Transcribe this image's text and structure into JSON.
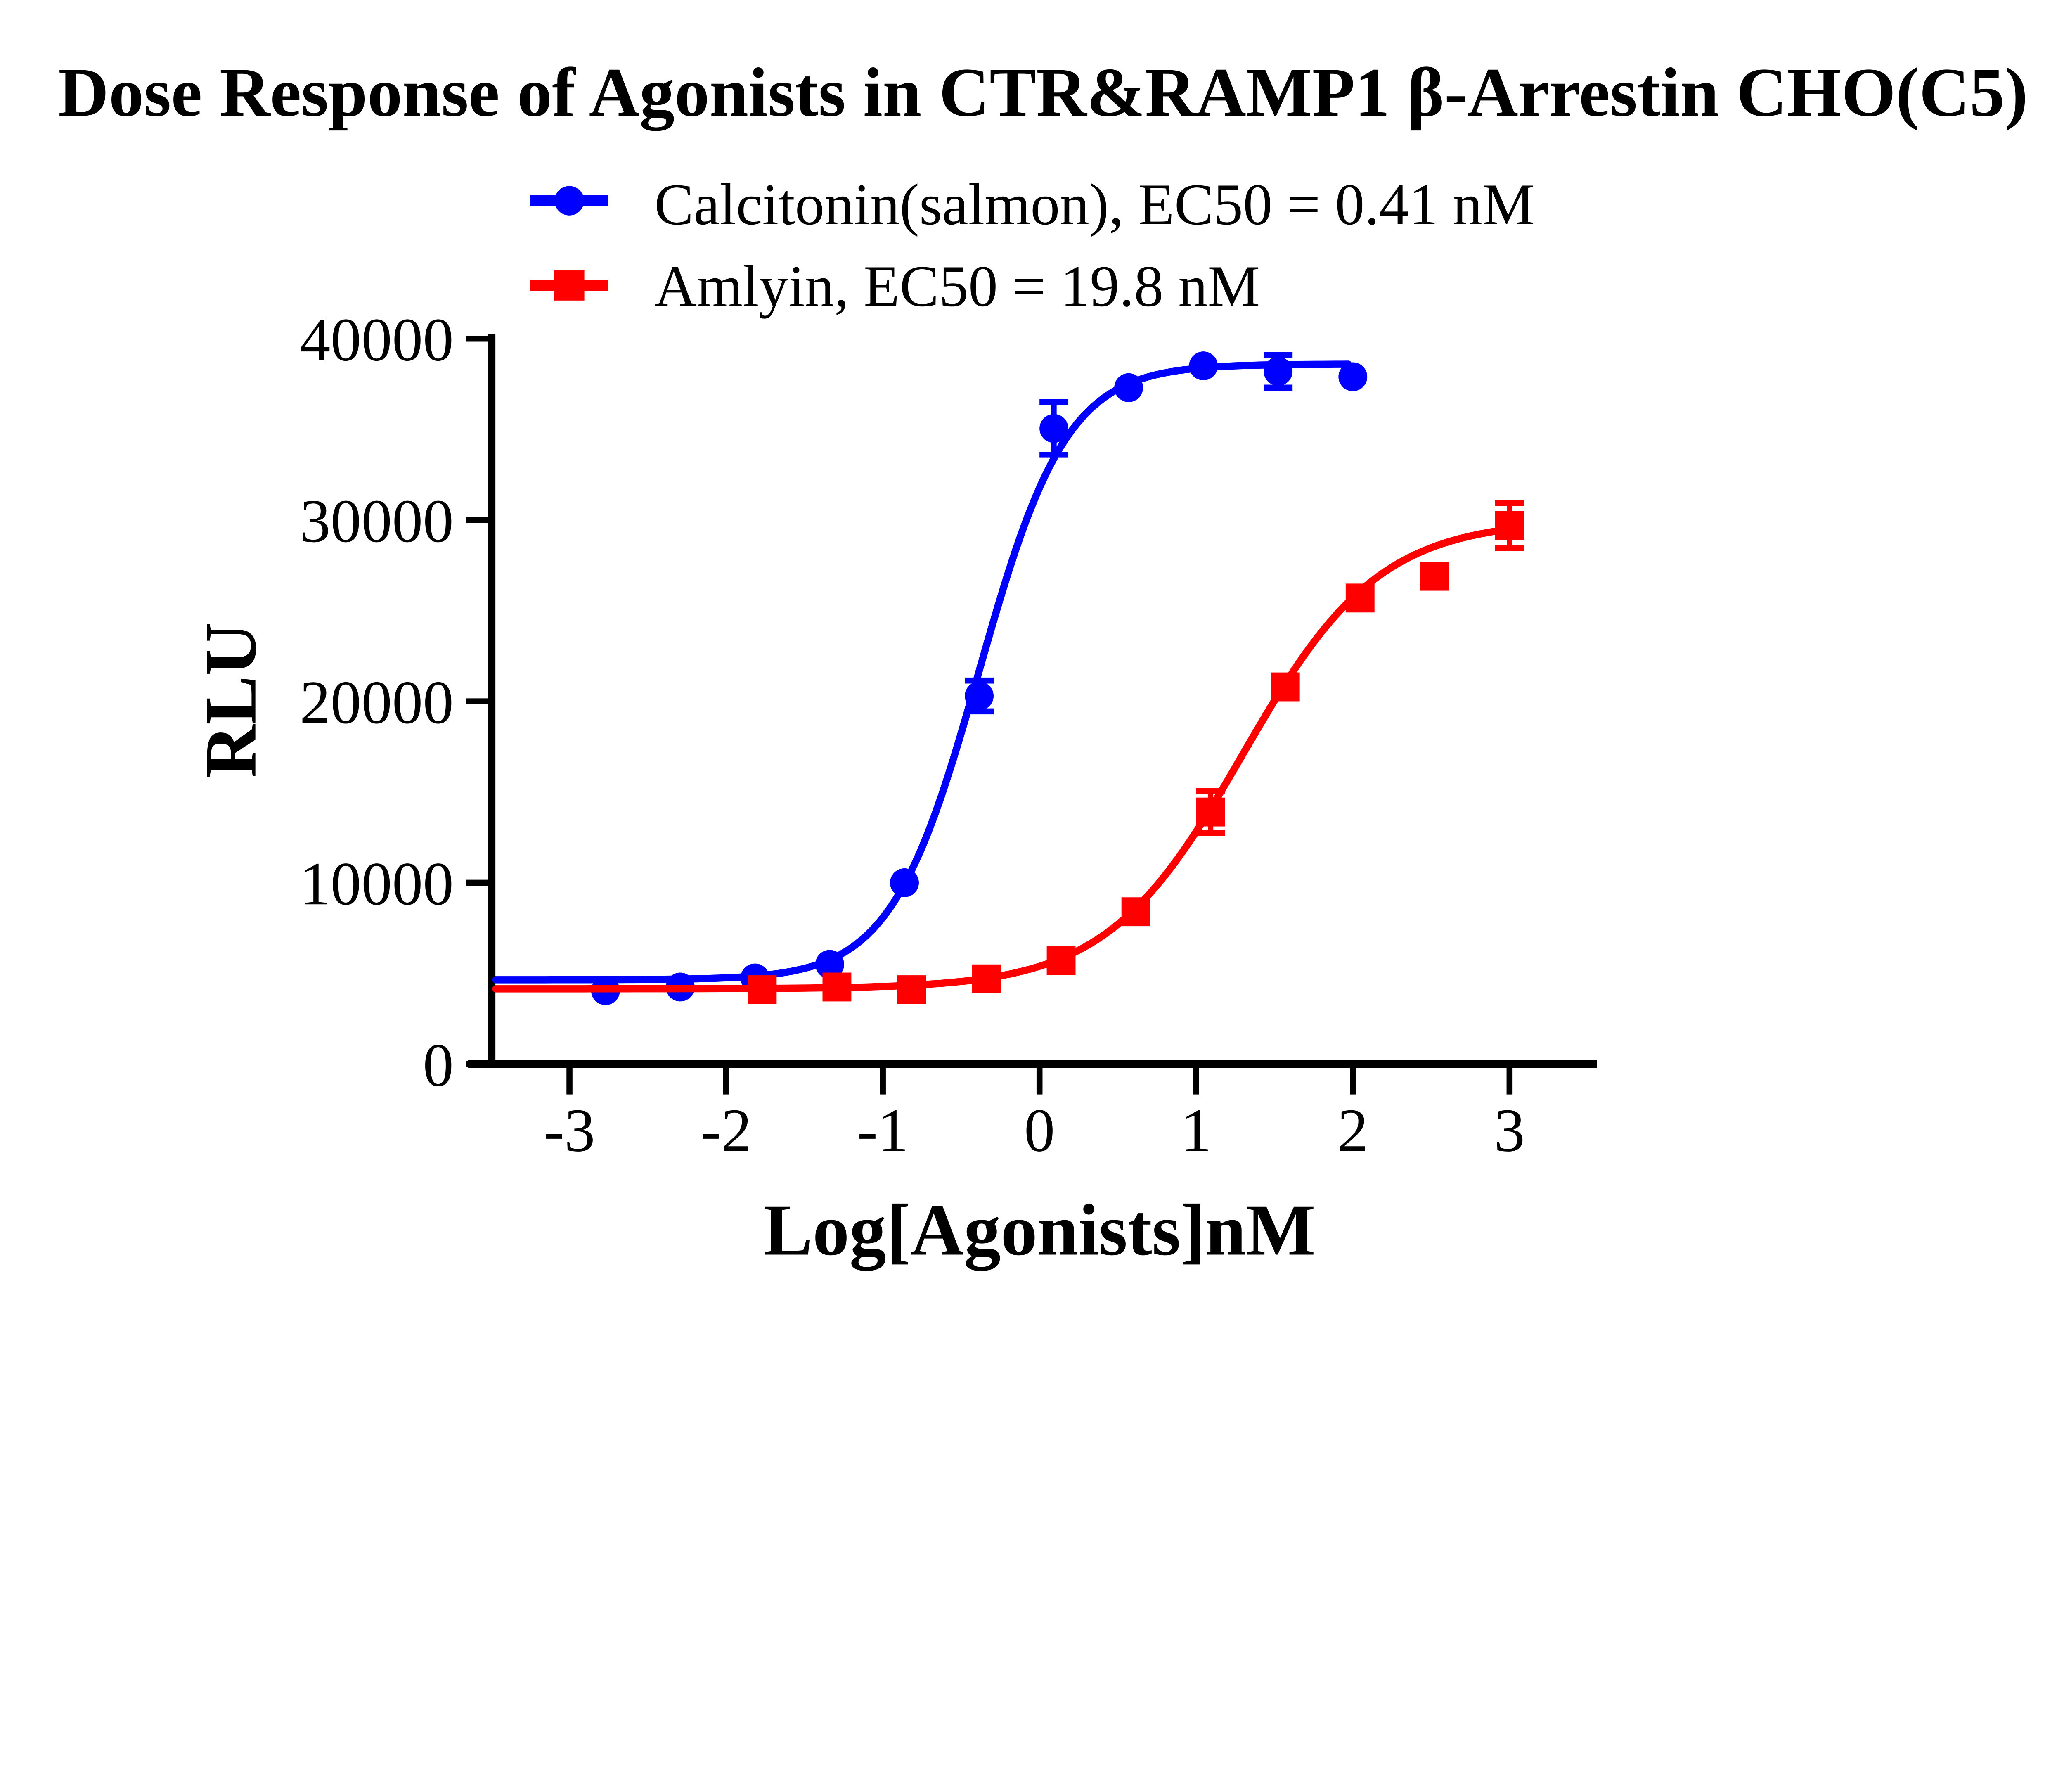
{
  "chart_data": {
    "type": "line",
    "title": "Dose Response of Agonists in CTR&RAMP1 β-Arrestin CHO(C5)",
    "xlabel": "Log[Agonists]nM",
    "ylabel": "RLU",
    "xlim": [
      -3.5,
      3.55
    ],
    "ylim": [
      0,
      40000
    ],
    "grid": false,
    "legend_position": "top-center",
    "axis_color": "#000000",
    "background_color": "#ffffff",
    "x_ticks": [
      {
        "value": -3,
        "label": "-3"
      },
      {
        "value": -2,
        "label": "-2"
      },
      {
        "value": -1,
        "label": "-1"
      },
      {
        "value": 0,
        "label": "0"
      },
      {
        "value": 1,
        "label": "1"
      },
      {
        "value": 2,
        "label": "2"
      },
      {
        "value": 3,
        "label": "3"
      }
    ],
    "y_ticks": [
      {
        "value": 0,
        "label": "0"
      },
      {
        "value": 10000,
        "label": "10000"
      },
      {
        "value": 20000,
        "label": "20000"
      },
      {
        "value": 30000,
        "label": "30000"
      },
      {
        "value": 40000,
        "label": "40000"
      }
    ],
    "series": [
      {
        "name": "Calcitonin(salmon)",
        "legend_label": "Calcitonin(salmon), EC50 = 0.41 nM",
        "ec50_label": "EC50 = 0.41 nM",
        "color": "#0000FF",
        "marker": "circle",
        "points": [
          {
            "x": -2.77,
            "y": 4050,
            "err": null
          },
          {
            "x": -2.293,
            "y": 4250,
            "err": null
          },
          {
            "x": -1.816,
            "y": 4750,
            "err": null
          },
          {
            "x": -1.339,
            "y": 5500,
            "err": null
          },
          {
            "x": -0.862,
            "y": 10000,
            "err": null
          },
          {
            "x": -0.385,
            "y": 20300,
            "err": 850
          },
          {
            "x": 0.092,
            "y": 35050,
            "err": 1450
          },
          {
            "x": 0.569,
            "y": 37300,
            "err": null
          },
          {
            "x": 1.046,
            "y": 38500,
            "err": null
          },
          {
            "x": 1.523,
            "y": 38200,
            "err": 900
          },
          {
            "x": 2.0,
            "y": 37900,
            "err": null
          }
        ],
        "fit": {
          "bottom": 4650,
          "top": 38600,
          "logEC50": -0.387,
          "hill": 1.55,
          "x_start": -3.47,
          "x_end": 2.0
        }
      },
      {
        "name": "Amlyin",
        "legend_label": "Amlyin, EC50 = 19.8 nM",
        "ec50_label": "EC50 = 19.8 nM",
        "color": "#FF0000",
        "marker": "square",
        "points": [
          {
            "x": -1.77,
            "y": 4100,
            "err": null
          },
          {
            "x": -1.293,
            "y": 4250,
            "err": null
          },
          {
            "x": -0.816,
            "y": 4100,
            "err": null
          },
          {
            "x": -0.339,
            "y": 4700,
            "err": null
          },
          {
            "x": 0.138,
            "y": 5700,
            "err": null
          },
          {
            "x": 0.615,
            "y": 8400,
            "err": null
          },
          {
            "x": 1.092,
            "y": 13900,
            "err": 1150
          },
          {
            "x": 1.569,
            "y": 20800,
            "err": null
          },
          {
            "x": 2.046,
            "y": 25700,
            "err": null
          },
          {
            "x": 2.523,
            "y": 26900,
            "err": null
          },
          {
            "x": 3.0,
            "y": 29700,
            "err": 1250
          }
        ],
        "fit": {
          "bottom": 4150,
          "top": 30000,
          "logEC50": 1.297,
          "hill": 1.0,
          "x_start": -3.47,
          "x_end": 3.0
        }
      }
    ]
  }
}
